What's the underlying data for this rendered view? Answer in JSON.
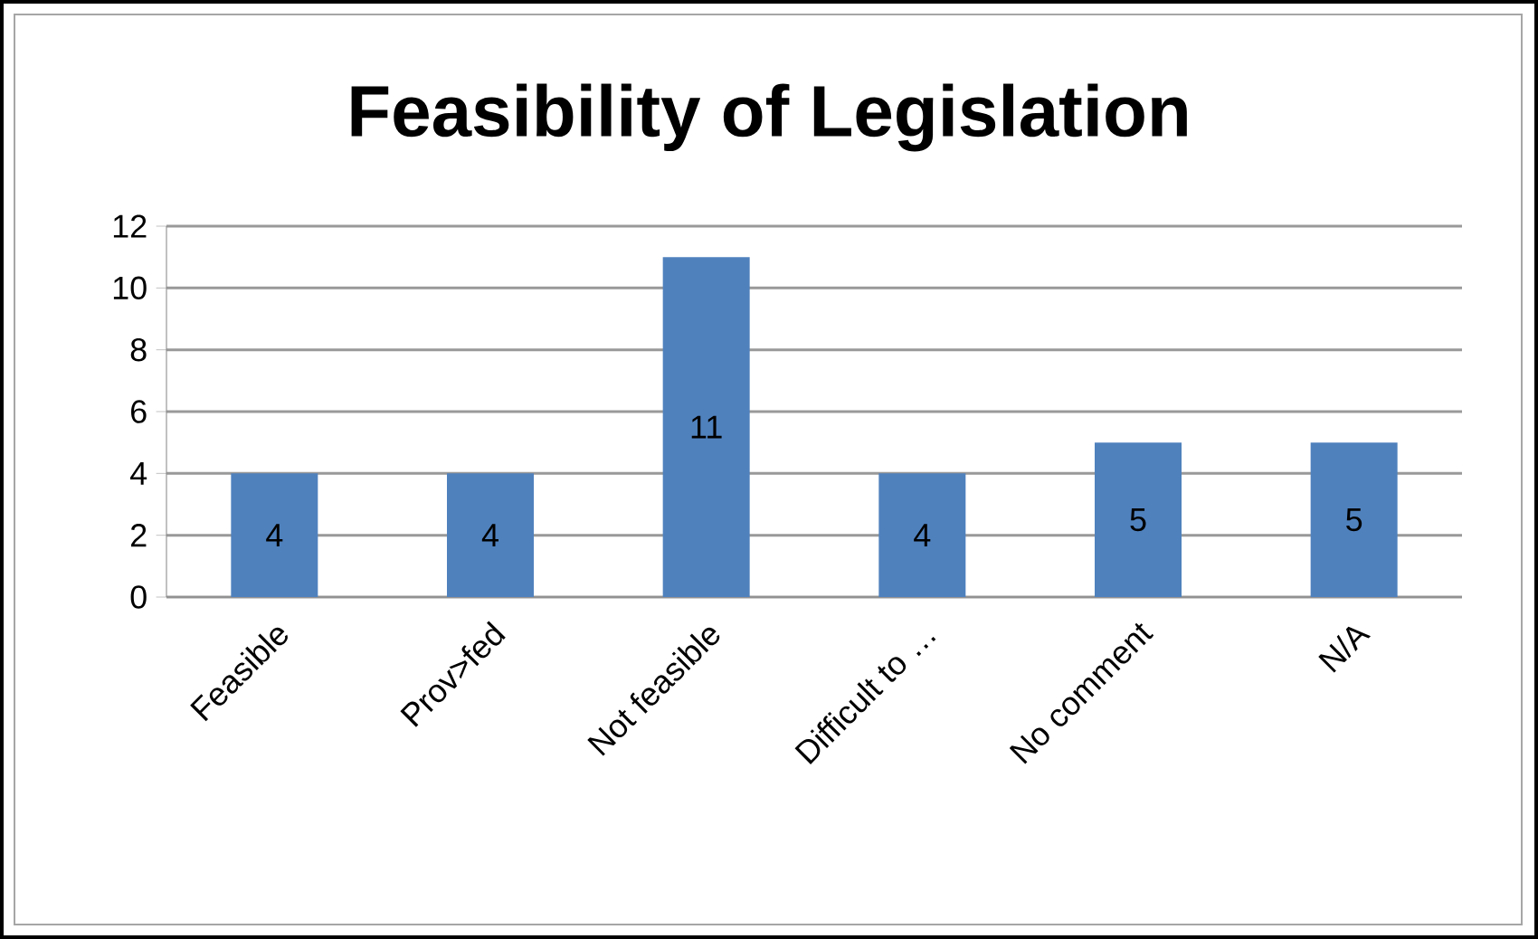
{
  "chart_data": {
    "type": "bar",
    "title": "Feasibility of Legislation",
    "categories": [
      "Feasible",
      "Prov>fed",
      "Not feasible",
      "Difficult to …",
      "No comment",
      "N/A"
    ],
    "values": [
      4,
      4,
      11,
      4,
      5,
      5
    ],
    "color": "#4f81bd",
    "ylim": [
      0,
      12
    ],
    "yticks": [
      0,
      2,
      4,
      6,
      8,
      10,
      12
    ],
    "grid": "y",
    "data_labels": true
  }
}
